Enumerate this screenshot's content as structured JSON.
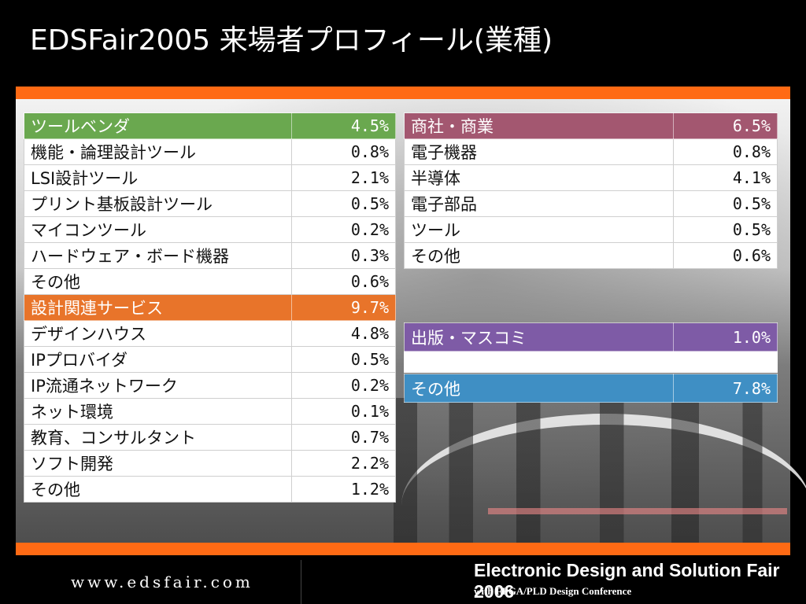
{
  "slide": {
    "title": "EDSFair2005 来場者プロフィール(業種)"
  },
  "colors": {
    "accent_bar": "#ff6a14",
    "green": "#6aa84f",
    "orange": "#e8742a",
    "mauve": "#a35770",
    "purple": "#7e5ba6",
    "blue": "#3f8fc4"
  },
  "left_table": [
    {
      "label": "ツールベンダ",
      "value": "4.5%",
      "type": "header",
      "color": "#6aa84f"
    },
    {
      "label": "機能・論理設計ツール",
      "value": "0.8%"
    },
    {
      "label": "LSI設計ツール",
      "value": "2.1%"
    },
    {
      "label": "プリント基板設計ツール",
      "value": "0.5%"
    },
    {
      "label": "マイコンツール",
      "value": "0.2%"
    },
    {
      "label": "ハードウェア・ボード機器",
      "value": "0.3%"
    },
    {
      "label": "その他",
      "value": "0.6%"
    },
    {
      "label": "設計関連サービス",
      "value": "9.7%",
      "type": "header",
      "color": "#e8742a"
    },
    {
      "label": "デザインハウス",
      "value": "4.8%"
    },
    {
      "label": "IPプロバイダ",
      "value": "0.5%"
    },
    {
      "label": "IP流通ネットワーク",
      "value": "0.2%"
    },
    {
      "label": "ネット環境",
      "value": "0.1%"
    },
    {
      "label": "教育、コンサルタント",
      "value": "0.7%"
    },
    {
      "label": "ソフト開発",
      "value": "2.2%"
    },
    {
      "label": "その他",
      "value": "1.2%"
    }
  ],
  "right_table": [
    {
      "label": "商社・商業",
      "value": "6.5%",
      "type": "header",
      "color": "#a35770"
    },
    {
      "label": "電子機器",
      "value": "0.8%"
    },
    {
      "label": "半導体",
      "value": "4.1%"
    },
    {
      "label": "電子部品",
      "value": "0.5%"
    },
    {
      "label": "ツール",
      "value": "0.5%"
    },
    {
      "label": "その他",
      "value": "0.6%"
    }
  ],
  "publishing": {
    "label": "出版・マスコミ",
    "value": "1.0%",
    "color": "#7e5ba6"
  },
  "other": {
    "label": "その他",
    "value": "7.8%",
    "color": "#3f8fc4"
  },
  "footer": {
    "url": "www.edsfair.com",
    "fair_name": "Electronic Design and Solution Fair 2006",
    "fair_sub": "with FPGA/PLD Design Conference"
  }
}
